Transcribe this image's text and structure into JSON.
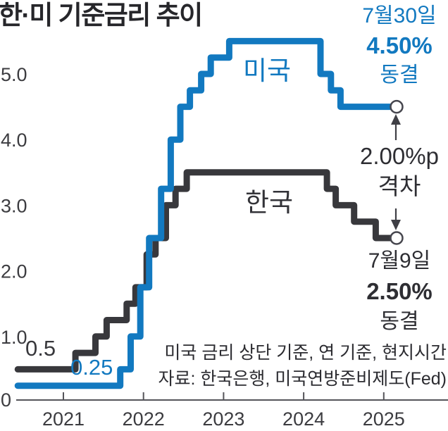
{
  "title": "한·미 기준금리 추이",
  "colors": {
    "us_line": "#1279c0",
    "kr_line": "#38383c",
    "axis": "#55555a",
    "text_dark": "#2e2e33"
  },
  "series_labels": {
    "us": "미국",
    "kr": "한국"
  },
  "inline_labels": {
    "kr_start": "0.5",
    "us_start": "0.25"
  },
  "annotations": {
    "us_latest": {
      "date": "7월30일",
      "rate": "4.50%",
      "action": "동결"
    },
    "gap": {
      "value": "2.00%p",
      "label": "격차"
    },
    "kr_latest": {
      "date": "7월9일",
      "rate": "2.50%",
      "action": "동결"
    }
  },
  "footnotes": [
    "미국 금리 상단 기준, 연 기준, 현지시간",
    "자료: 한국은행, 미국연방준비제도(Fed)"
  ],
  "chart_data": {
    "type": "line",
    "step": true,
    "title": "한·미 기준금리 추이",
    "y_unit": "%",
    "x_tick_years": [
      "2021",
      "2022",
      "2023",
      "2024",
      "2025"
    ],
    "y_ticks": [
      {
        "v": 5,
        "label": "5.0"
      },
      {
        "v": 4,
        "label": "4.0"
      },
      {
        "v": 3,
        "label": "3.0"
      },
      {
        "v": 2,
        "label": "2.0"
      },
      {
        "v": 1,
        "label": "1.0"
      },
      {
        "v": 0,
        "label": "0"
      }
    ],
    "ylim": [
      0,
      5.75
    ],
    "xlim_time": [
      2020.93,
      2025.66
    ],
    "grid": false,
    "legend": "inline-labels",
    "series": [
      {
        "key": "kr",
        "name": "한국",
        "color": "#38383c",
        "points": [
          [
            2020.93,
            0.5
          ],
          [
            2021.65,
            0.75
          ],
          [
            2021.9,
            1.0
          ],
          [
            2022.04,
            1.25
          ],
          [
            2022.29,
            1.5
          ],
          [
            2022.4,
            1.75
          ],
          [
            2022.54,
            2.25
          ],
          [
            2022.65,
            2.5
          ],
          [
            2022.78,
            3.0
          ],
          [
            2022.9,
            3.25
          ],
          [
            2023.04,
            3.5
          ],
          [
            2024.79,
            3.25
          ],
          [
            2024.9,
            3.0
          ],
          [
            2025.13,
            2.75
          ],
          [
            2025.4,
            2.5
          ],
          [
            2025.66,
            2.5
          ]
        ]
      },
      {
        "key": "us",
        "name": "미국",
        "color": "#1279c0",
        "points": [
          [
            2020.93,
            0.25
          ],
          [
            2022.21,
            0.5
          ],
          [
            2022.34,
            1.0
          ],
          [
            2022.46,
            1.75
          ],
          [
            2022.57,
            2.5
          ],
          [
            2022.72,
            3.25
          ],
          [
            2022.84,
            4.0
          ],
          [
            2022.96,
            4.5
          ],
          [
            2023.08,
            4.75
          ],
          [
            2023.22,
            5.0
          ],
          [
            2023.34,
            5.25
          ],
          [
            2023.57,
            5.5
          ],
          [
            2024.71,
            5.0
          ],
          [
            2024.84,
            4.75
          ],
          [
            2024.96,
            4.5
          ],
          [
            2025.66,
            4.5
          ]
        ]
      }
    ]
  }
}
